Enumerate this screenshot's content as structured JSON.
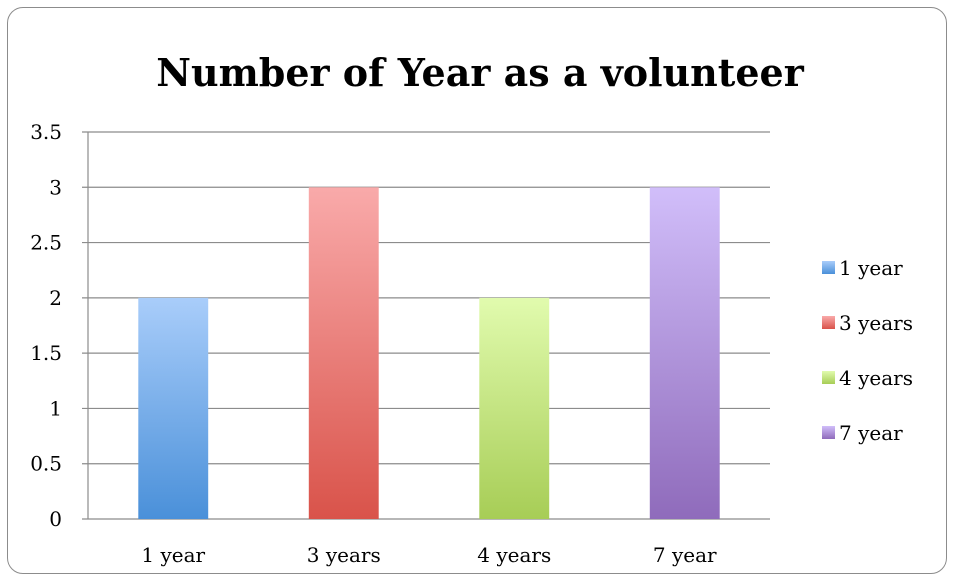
{
  "chart_data": {
    "type": "bar",
    "title": "Number of Year as a volunteer",
    "categories": [
      "1 year",
      "3 years",
      "4 years",
      "7 year"
    ],
    "values": [
      2,
      3,
      2,
      3
    ],
    "y_ticks": [
      "0",
      "0.5",
      "1",
      "1.5",
      "2",
      "2.5",
      "3",
      "3.5"
    ],
    "ylim": [
      0,
      3.5
    ],
    "grid": true,
    "legend_position": "right",
    "legend": [
      "1 year",
      "3 years",
      "4 years",
      "7 year"
    ],
    "colors": [
      {
        "top": "#a9cdfa",
        "bottom": "#4a90d9"
      },
      {
        "top": "#f9aaaa",
        "bottom": "#d9534a"
      },
      {
        "top": "#e1fbae",
        "bottom": "#a7cd56"
      },
      {
        "top": "#d1befa",
        "bottom": "#8f6bbb"
      }
    ]
  }
}
